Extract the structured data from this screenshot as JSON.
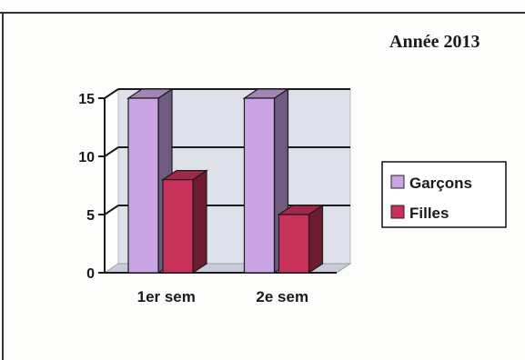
{
  "chart_data": {
    "type": "bar",
    "title": "Année 2013",
    "categories": [
      "1er sem",
      "2e sem"
    ],
    "series": [
      {
        "name": "Garçons",
        "values": [
          15,
          15
        ],
        "color": "#c9a6e3"
      },
      {
        "name": "Filles",
        "values": [
          8,
          5
        ],
        "color": "#c8325a"
      }
    ],
    "ylim": [
      0,
      15
    ],
    "yticks": [
      0,
      5,
      10,
      15
    ],
    "grid": true,
    "legend_position": "right",
    "style": "3d-columns"
  }
}
